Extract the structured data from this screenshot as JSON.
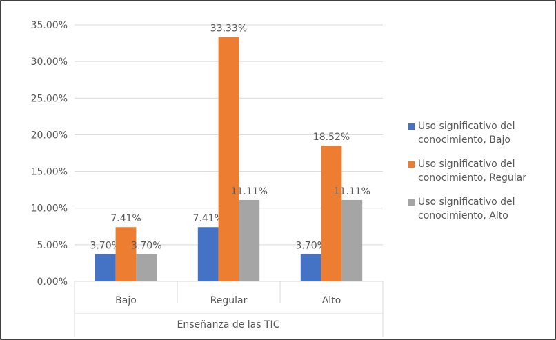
{
  "chart_data": {
    "type": "bar",
    "x_label": "Enseñanza de las TIC",
    "categories": [
      "Bajo",
      "Regular",
      "Alto"
    ],
    "series": [
      {
        "name": "Uso significativo del conocimiento,  Bajo",
        "color": "#4472c4",
        "values": [
          3.7,
          7.41,
          3.7
        ],
        "value_labels": [
          "3.70%",
          "7.41%",
          "3.70%"
        ]
      },
      {
        "name": "Uso significativo del conocimiento,  Regular",
        "color": "#ed7d31",
        "values": [
          7.41,
          33.33,
          18.52
        ],
        "value_labels": [
          "7.41%",
          "33.33%",
          "18.52%"
        ]
      },
      {
        "name": "Uso significativo del conocimiento,  Alto",
        "color": "#a5a5a5",
        "values": [
          3.7,
          11.11,
          11.11
        ],
        "value_labels": [
          "3.70%",
          "11.11%",
          "11.11%"
        ]
      }
    ],
    "ylim": [
      0,
      35
    ],
    "yticks": [
      {
        "value": 0,
        "label": "0.00%"
      },
      {
        "value": 5,
        "label": "5.00%"
      },
      {
        "value": 10,
        "label": "10.00%"
      },
      {
        "value": 15,
        "label": "15.00%"
      },
      {
        "value": 20,
        "label": "20.00%"
      },
      {
        "value": 25,
        "label": "25.00%"
      },
      {
        "value": 30,
        "label": "30.00%"
      },
      {
        "value": 35,
        "label": "35.00%"
      }
    ],
    "grid": true,
    "legend": "right"
  }
}
